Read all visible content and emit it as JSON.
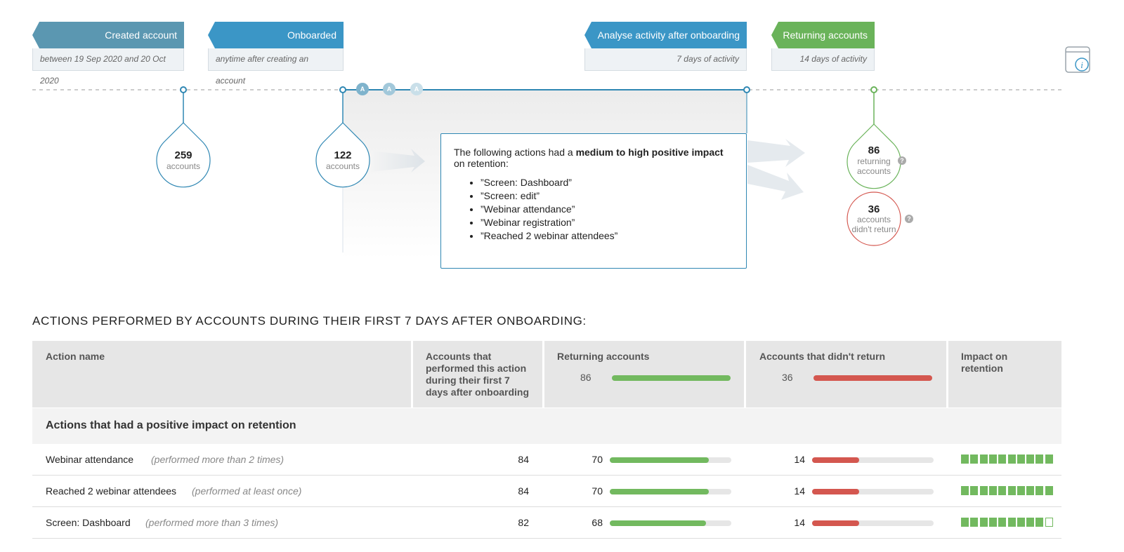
{
  "colors": {
    "blue_head": "#3b96c6",
    "gray_blue_head": "#5b97b1",
    "green_head": "#6ab35a",
    "green": "#72b95f",
    "red": "#d4574f",
    "accent_blue": "#2f87b3"
  },
  "stages": [
    {
      "title": "Created account",
      "subtitle": "between 19 Sep 2020 and 20 Oct 2020"
    },
    {
      "title": "Onboarded",
      "subtitle": "anytime after creating an account"
    },
    {
      "title": "Analyse activity after onboarding",
      "subtitle": "7 days of activity"
    },
    {
      "title": "Returning accounts",
      "subtitle": "14 days of activity"
    }
  ],
  "timeline_markers": [
    "A",
    "A",
    "A"
  ],
  "bubbles": {
    "created": {
      "value": "259",
      "label": "accounts"
    },
    "onboarded": {
      "value": "122",
      "label": "accounts"
    },
    "returning": {
      "value": "86",
      "label_line1": "returning",
      "label_line2": "accounts"
    },
    "not_returned": {
      "value": "36",
      "label_line1": "accounts",
      "label_line2": "didn't return"
    }
  },
  "help_icon_text": "?",
  "info_icon": "info-icon",
  "impact_box": {
    "prefix": "The following actions had a ",
    "emphasis": "medium to high positive impact",
    "suffix": " on retention:",
    "items": [
      "”Screen: Dashboard”",
      "”Screen: edit”",
      "”Webinar attendance”",
      "”Webinar registration”",
      "”Reached 2 webinar attendees”"
    ]
  },
  "section_title": "ACTIONS PERFORMED BY ACCOUNTS DURING THEIR FIRST 7 DAYS AFTER ONBOARDING:",
  "table": {
    "headers": {
      "action_name": "Action name",
      "performed": "Accounts that performed this action during their first 7 days after onboarding",
      "returning": "Returning accounts",
      "returning_total": "86",
      "not_returned": "Accounts that didn't return",
      "not_returned_total": "36",
      "impact": "Impact on retention"
    },
    "group_title": "Actions that had a positive impact on retention",
    "rows": [
      {
        "name": "Webinar attendance",
        "note": "(performed more than 2 times)",
        "performed": "84",
        "returning": "70",
        "returning_fraction": 0.814,
        "not_returned": "14",
        "not_returned_fraction": 0.389,
        "impact_filled": 10,
        "impact_total": 10
      },
      {
        "name": "Reached 2 webinar attendees",
        "note": "(performed at least once)",
        "performed": "84",
        "returning": "70",
        "returning_fraction": 0.814,
        "not_returned": "14",
        "not_returned_fraction": 0.389,
        "impact_filled": 10,
        "impact_total": 10
      },
      {
        "name": "Screen: Dashboard",
        "note": "(performed more than 3 times)",
        "performed": "82",
        "returning": "68",
        "returning_fraction": 0.791,
        "not_returned": "14",
        "not_returned_fraction": 0.389,
        "impact_filled": 9,
        "impact_total": 10
      }
    ]
  }
}
